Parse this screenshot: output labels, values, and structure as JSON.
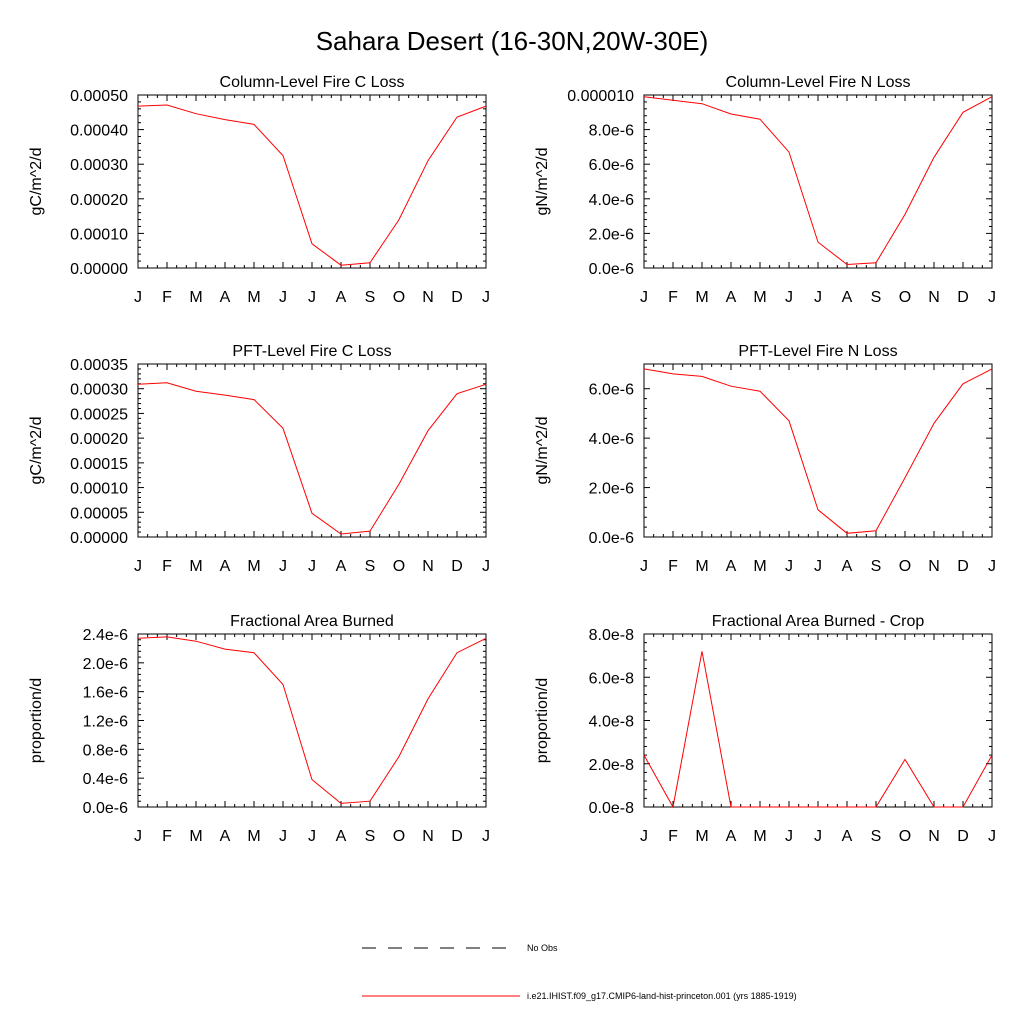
{
  "title": "Sahara Desert (16-30N,20W-30E)",
  "legend": {
    "obs_label": "No Obs",
    "model_label": "i.e21.IHIST.f09_g17.CMIP6-land-hist-princeton.001 (yrs 1885-1919)",
    "model_color": "#ff0000",
    "obs_color": "#000000"
  },
  "chart_data": [
    {
      "type": "line",
      "title": "Column-Level Fire C Loss",
      "ylabel": "gC/m^2/d",
      "x": [
        "J",
        "F",
        "M",
        "A",
        "M",
        "J",
        "J",
        "A",
        "S",
        "O",
        "N",
        "D",
        "J"
      ],
      "ylim": [
        0,
        0.0005
      ],
      "yticks": [
        0,
        0.0001,
        0.0002,
        0.0003,
        0.0004,
        0.0005
      ],
      "ytick_labels": [
        "0.00000",
        "0.00010",
        "0.00020",
        "0.00030",
        "0.00040",
        "0.00050"
      ],
      "series": [
        {
          "color": "#ff0000",
          "values": [
            0.000468,
            0.000471,
            0.000446,
            0.000429,
            0.000415,
            0.000325,
            7e-05,
            8e-06,
            1.5e-05,
            0.00014,
            0.00031,
            0.000436,
            0.000468
          ]
        }
      ]
    },
    {
      "type": "line",
      "title": "Column-Level Fire N Loss",
      "ylabel": "gN/m^2/d",
      "x": [
        "J",
        "F",
        "M",
        "A",
        "M",
        "J",
        "J",
        "A",
        "S",
        "O",
        "N",
        "D",
        "J"
      ],
      "ylim": [
        0,
        1e-05
      ],
      "yticks": [
        0,
        2e-06,
        4e-06,
        6e-06,
        8e-06,
        1e-05
      ],
      "ytick_labels": [
        "0.0e-6",
        "2.0e-6",
        "4.0e-6",
        "6.0e-6",
        "8.0e-6",
        "0.000010"
      ],
      "series": [
        {
          "color": "#ff0000",
          "values": [
            9.9e-06,
            9.7e-06,
            9.5e-06,
            8.9e-06,
            8.6e-06,
            6.7e-06,
            1.5e-06,
            2e-07,
            3e-07,
            3.1e-06,
            6.4e-06,
            9e-06,
            9.9e-06
          ]
        }
      ]
    },
    {
      "type": "line",
      "title": "PFT-Level Fire C Loss",
      "ylabel": "gC/m^2/d",
      "x": [
        "J",
        "F",
        "M",
        "A",
        "M",
        "J",
        "J",
        "A",
        "S",
        "O",
        "N",
        "D",
        "J"
      ],
      "ylim": [
        0,
        0.00035
      ],
      "yticks": [
        0,
        5e-05,
        0.0001,
        0.00015,
        0.0002,
        0.00025,
        0.0003,
        0.00035
      ],
      "ytick_labels": [
        "0.00000",
        "0.00005",
        "0.00010",
        "0.00015",
        "0.00020",
        "0.00025",
        "0.00030",
        "0.00035"
      ],
      "series": [
        {
          "color": "#ff0000",
          "values": [
            0.000309,
            0.000312,
            0.000295,
            0.000287,
            0.000278,
            0.00022,
            4.8e-05,
            6e-06,
            1.2e-05,
            0.000107,
            0.000215,
            0.00029,
            0.000309
          ]
        }
      ]
    },
    {
      "type": "line",
      "title": "PFT-Level Fire N Loss",
      "ylabel": "gN/m^2/d",
      "x": [
        "J",
        "F",
        "M",
        "A",
        "M",
        "J",
        "J",
        "A",
        "S",
        "O",
        "N",
        "D",
        "J"
      ],
      "ylim": [
        0,
        7e-06
      ],
      "yticks": [
        0,
        2e-06,
        4e-06,
        6e-06
      ],
      "ytick_labels": [
        "0.0e-6",
        "2.0e-6",
        "4.0e-6",
        "6.0e-6"
      ],
      "series": [
        {
          "color": "#ff0000",
          "values": [
            6.8e-06,
            6.6e-06,
            6.5e-06,
            6.1e-06,
            5.9e-06,
            4.7e-06,
            1.1e-06,
            1.5e-07,
            2.5e-07,
            2.4e-06,
            4.6e-06,
            6.2e-06,
            6.8e-06
          ]
        }
      ]
    },
    {
      "type": "line",
      "title": "Fractional Area Burned",
      "ylabel": "proportion/d",
      "x": [
        "J",
        "F",
        "M",
        "A",
        "M",
        "J",
        "J",
        "A",
        "S",
        "O",
        "N",
        "D",
        "J"
      ],
      "ylim": [
        0,
        2.4e-06
      ],
      "yticks": [
        0,
        4e-07,
        8e-07,
        1.2e-06,
        1.6e-06,
        2e-06,
        2.4e-06
      ],
      "ytick_labels": [
        "0.0e-6",
        "0.4e-6",
        "0.8e-6",
        "1.2e-6",
        "1.6e-6",
        "2.0e-6",
        "2.4e-6"
      ],
      "series": [
        {
          "color": "#ff0000",
          "values": [
            2.34e-06,
            2.36e-06,
            2.3e-06,
            2.19e-06,
            2.14e-06,
            1.7e-06,
            3.8e-07,
            5e-08,
            8e-08,
            7e-07,
            1.5e-06,
            2.14e-06,
            2.34e-06
          ]
        }
      ]
    },
    {
      "type": "line",
      "title": "Fractional Area Burned - Crop",
      "ylabel": "proportion/d",
      "x": [
        "J",
        "F",
        "M",
        "A",
        "M",
        "J",
        "J",
        "A",
        "S",
        "O",
        "N",
        "D",
        "J"
      ],
      "ylim": [
        0,
        8e-08
      ],
      "yticks": [
        0,
        2e-08,
        4e-08,
        6e-08,
        8e-08
      ],
      "ytick_labels": [
        "0.0e-8",
        "2.0e-8",
        "4.0e-8",
        "6.0e-8",
        "8.0e-8"
      ],
      "series": [
        {
          "color": "#ff0000",
          "values": [
            2.4e-08,
            0,
            7.2e-08,
            0,
            0,
            0,
            0,
            0,
            0,
            2.2e-08,
            0,
            0,
            2.4e-08
          ]
        }
      ]
    }
  ]
}
